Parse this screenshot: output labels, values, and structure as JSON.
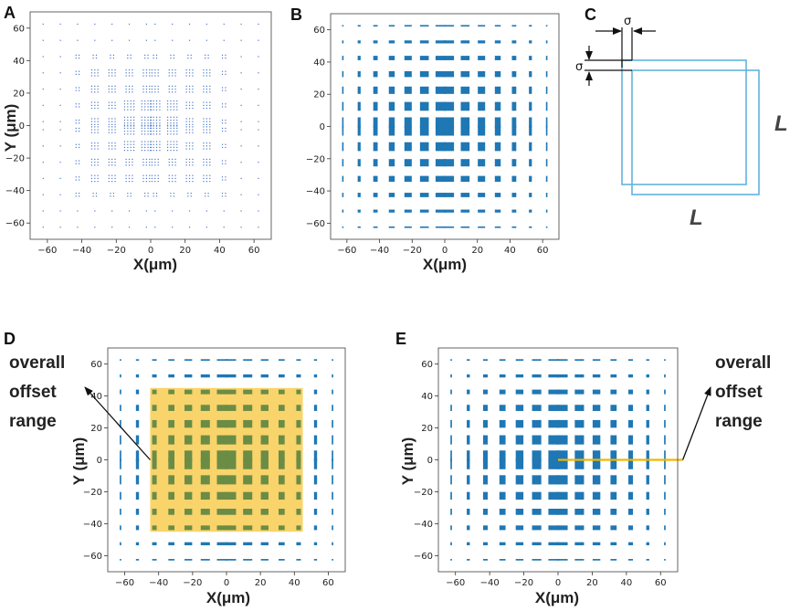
{
  "colors": {
    "marker": "#1f77b4",
    "panelA_marker": "#4a78c8",
    "highlight": "#f6c63a",
    "overlap": "#6b8c45",
    "line": "#f2b600",
    "diagram": "#62b3dd"
  },
  "chart_data": [
    {
      "id": "A",
      "type": "scatter",
      "title": "",
      "panel_label": "A",
      "xlabel": "X(μm)",
      "ylabel": "Y (μm)",
      "xlim": [
        -70,
        70
      ],
      "ylim": [
        -70,
        70
      ],
      "xticks": [
        -60,
        -40,
        -20,
        0,
        20,
        40,
        60
      ],
      "yticks": [
        -60,
        -40,
        -20,
        0,
        20,
        40,
        60
      ],
      "tick_labels": [
        "−60",
        "−40",
        "−20",
        "0",
        "20",
        "40",
        "60"
      ],
      "grid": false,
      "lattice_centers": [
        -62.5,
        -52.5,
        -42.5,
        -32.5,
        -22.5,
        -12.5,
        -2.5,
        2.5,
        12.5,
        22.5,
        32.5,
        42.5,
        52.5,
        62.5
      ],
      "note": "dense grid of point markers; cluster size decreases with distance from origin"
    },
    {
      "id": "B",
      "type": "scatter",
      "title": "",
      "panel_label": "B",
      "xlabel": "X(μm)",
      "ylabel": "",
      "xlim": [
        -70,
        70
      ],
      "ylim": [
        -70,
        70
      ],
      "xticks": [
        -60,
        -40,
        -20,
        0,
        20,
        40,
        60
      ],
      "yticks": [
        -60,
        -40,
        -20,
        0,
        20,
        40,
        60
      ],
      "tick_labels": [
        "−60",
        "−40",
        "−20",
        "0",
        "20",
        "40",
        "60"
      ],
      "grid": false,
      "lattice_centers": [
        -62.5,
        -52.5,
        -42.5,
        -32.5,
        -22.5,
        -12.5,
        -2.5,
        2.5,
        12.5,
        22.5,
        32.5,
        42.5,
        52.5,
        62.5
      ],
      "block_sizes": [
        1,
        2,
        3,
        4,
        5,
        6,
        7,
        7,
        6,
        5,
        4,
        3,
        2,
        1
      ]
    },
    {
      "id": "D",
      "type": "scatter",
      "title": "",
      "panel_label": "D",
      "xlabel": "X(μm)",
      "ylabel": "Y (μm)",
      "xlim": [
        -70,
        70
      ],
      "ylim": [
        -70,
        70
      ],
      "xticks": [
        -60,
        -40,
        -20,
        0,
        20,
        40,
        60
      ],
      "yticks": [
        -60,
        -40,
        -20,
        0,
        20,
        40,
        60
      ],
      "tick_labels": [
        "−60",
        "−40",
        "−20",
        "0",
        "20",
        "40",
        "60"
      ],
      "grid": false,
      "lattice_centers": [
        -62.5,
        -52.5,
        -42.5,
        -32.5,
        -22.5,
        -12.5,
        -2.5,
        2.5,
        12.5,
        22.5,
        32.5,
        42.5,
        52.5,
        62.5
      ],
      "block_sizes": [
        1,
        2,
        3,
        4,
        5,
        6,
        7,
        7,
        6,
        5,
        4,
        3,
        2,
        1
      ],
      "highlight_range": {
        "x": [
          -45,
          45
        ],
        "y": [
          -45,
          45
        ]
      },
      "annotation": "overall offset range"
    },
    {
      "id": "E",
      "type": "scatter",
      "title": "",
      "panel_label": "E",
      "xlabel": "X(μm)",
      "ylabel": "Y (μm)",
      "xlim": [
        -70,
        70
      ],
      "ylim": [
        -70,
        70
      ],
      "xticks": [
        -60,
        -40,
        -20,
        0,
        20,
        40,
        60
      ],
      "yticks": [
        -60,
        -40,
        -20,
        0,
        20,
        40,
        60
      ],
      "tick_labels": [
        "−60",
        "−40",
        "−20",
        "0",
        "20",
        "40",
        "60"
      ],
      "grid": false,
      "lattice_centers": [
        -62.5,
        -52.5,
        -42.5,
        -32.5,
        -22.5,
        -12.5,
        -2.5,
        2.5,
        12.5,
        22.5,
        32.5,
        42.5,
        52.5,
        62.5
      ],
      "block_sizes": [
        1,
        2,
        3,
        4,
        5,
        6,
        7,
        7,
        6,
        5,
        4,
        3,
        2,
        1
      ],
      "offset_line": {
        "x": [
          0,
          73
        ],
        "y": 0
      },
      "annotation": "overall offset range"
    }
  ],
  "diagram": {
    "panel_label": "C",
    "sigma_top": "σ",
    "sigma_left": "σ",
    "side_right": "L",
    "side_bottom": "L"
  },
  "annotations": {
    "D": [
      "overall",
      "offset",
      "range"
    ],
    "E": [
      "overall",
      "offset",
      "range"
    ]
  }
}
